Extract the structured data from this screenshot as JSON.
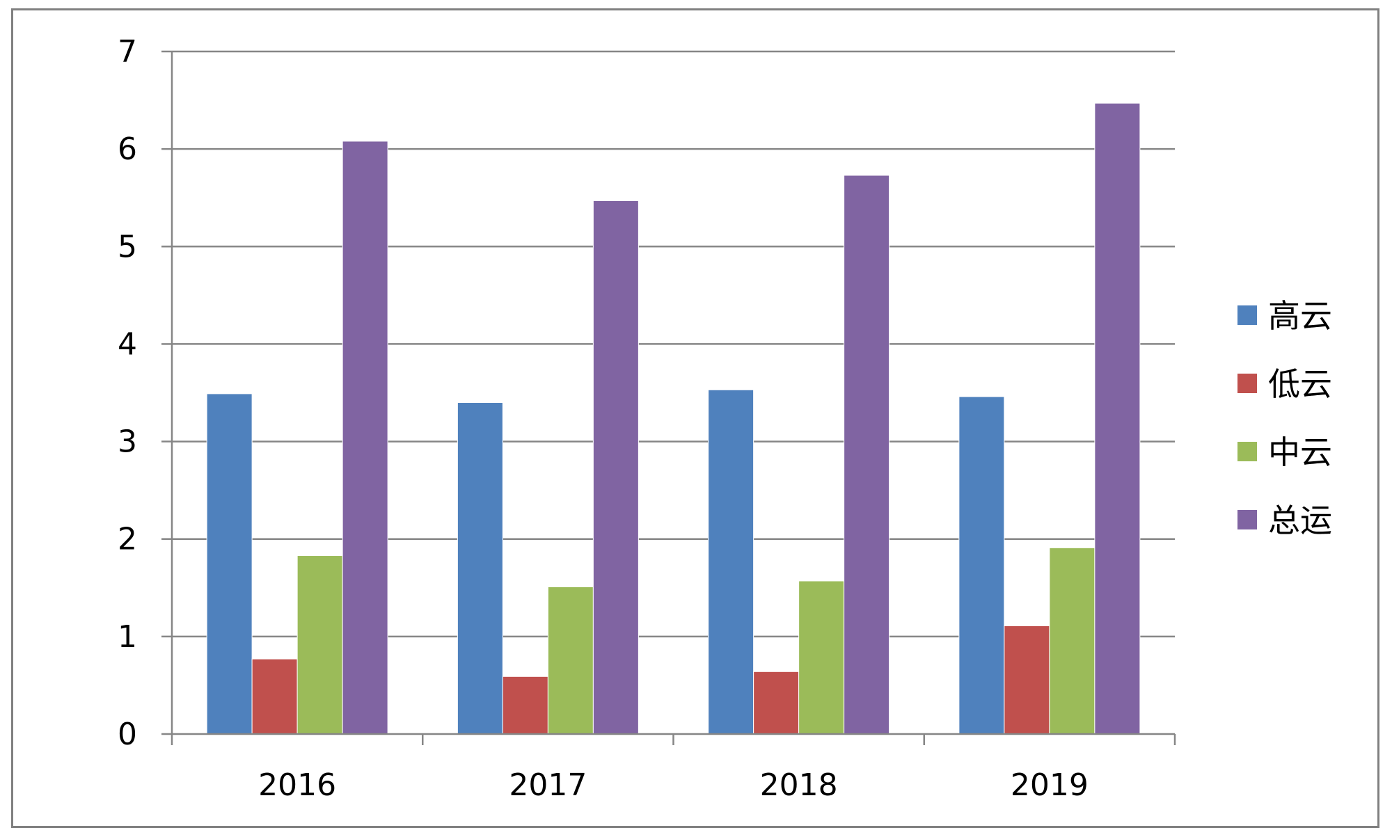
{
  "chart_data": {
    "type": "bar",
    "categories": [
      "2016",
      "2017",
      "2018",
      "2019"
    ],
    "series": [
      {
        "name": "高云",
        "color": "#4F81BD",
        "values": [
          3.49,
          3.4,
          3.53,
          3.46
        ]
      },
      {
        "name": "低云",
        "color": "#C0504D",
        "values": [
          0.77,
          0.59,
          0.64,
          1.11
        ]
      },
      {
        "name": "中云",
        "color": "#9BBB59",
        "values": [
          1.83,
          1.51,
          1.57,
          1.91
        ]
      },
      {
        "name": "总运",
        "color": "#8064A2",
        "values": [
          6.08,
          5.47,
          5.73,
          6.47
        ]
      }
    ],
    "ylim": [
      0,
      7
    ],
    "yticks": [
      0,
      1,
      2,
      3,
      4,
      5,
      6,
      7
    ],
    "grid": true,
    "legend_position": "right"
  }
}
